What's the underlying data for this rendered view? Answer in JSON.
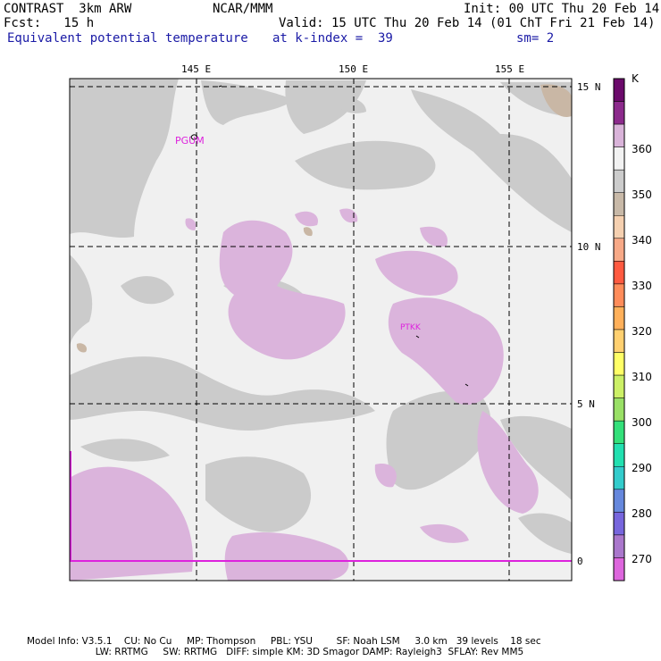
{
  "header": {
    "model": "CONTRAST  3km ARW",
    "center": "NCAR/MMM",
    "init": "Init: 00 UTC Thu 20 Feb 14",
    "fcst": "Fcst:   15 h",
    "valid": "Valid: 15 UTC Thu 20 Feb 14 (01 ChT Fri 21 Feb 14)",
    "field": "Equivalent potential temperature",
    "level": "at k-index =  39",
    "smooth": "sm= 2"
  },
  "axes": {
    "lon_labels": [
      "145 E",
      "150 E",
      "155 E"
    ],
    "lat_labels": [
      "15 N",
      "10 N",
      "5 N",
      "0"
    ]
  },
  "stations": [
    {
      "id": "PGUM",
      "label": "PGUM"
    },
    {
      "id": "PTKK",
      "label": "PTKK"
    }
  ],
  "colorbar": {
    "unit": "K",
    "labels": [
      "360",
      "350",
      "340",
      "330",
      "320",
      "310",
      "300",
      "290",
      "280",
      "270"
    ],
    "colors": [
      "#6b0a6b",
      "#8c2a8c",
      "#d9b3d9",
      "#f2f2f2",
      "#cccccc",
      "#c8b9a8",
      "#f5d0b0",
      "#f7a987",
      "#ff5a40",
      "#ff8c5a",
      "#ffb05a",
      "#ffd070",
      "#ffff66",
      "#ccf066",
      "#99e066",
      "#33e07a",
      "#22e0b0",
      "#33cccc",
      "#6688dd",
      "#7766dd",
      "#aa77cc",
      "#dd66dd"
    ]
  },
  "footer": {
    "line1": "Model Info: V3.5.1    CU: No Cu     MP: Thompson     PBL: YSU        SF: Noah LSM     3.0 km   39 levels    18 sec",
    "line2": "                       LW: RRTMG     SW: RRTMG   DIFF: simple KM: 3D Smagor DAMP: Rayleigh3  SFLAY: Rev MM5"
  }
}
